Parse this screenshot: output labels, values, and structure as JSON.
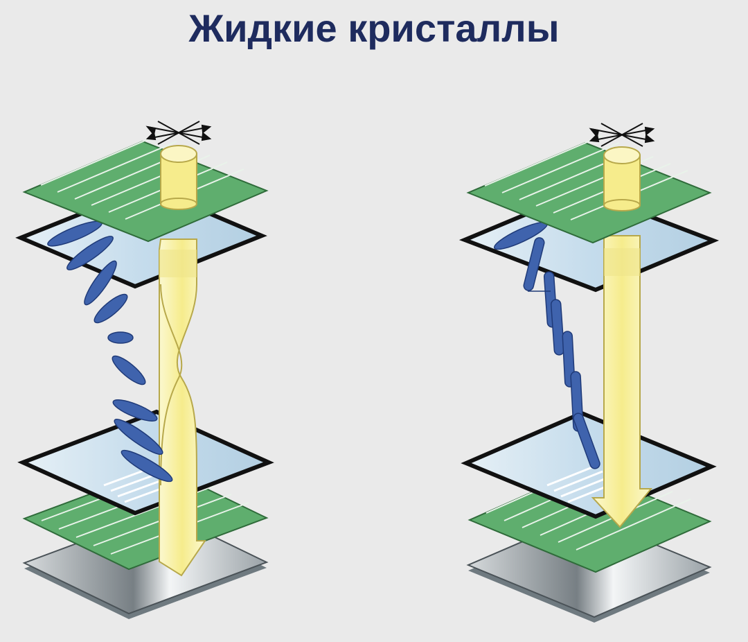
{
  "slide": {
    "title": "Жидкие кристаллы"
  },
  "colors": {
    "background": "#eaeaea",
    "title": "#1e2b5e",
    "polarizer_green": "#5fae6e",
    "polarizer_line": "#e9f3ea",
    "glass_blue": "#c5dcec",
    "frame_black": "#111111",
    "molecule_blue": "#3f63ad",
    "light_yellow": "#f7ef9a",
    "mirror_gray": "#a9b0b4"
  },
  "diagrams": [
    {
      "id": "left",
      "state": "twisted-light-passes"
    },
    {
      "id": "right",
      "state": "aligned-light-blocked"
    }
  ]
}
